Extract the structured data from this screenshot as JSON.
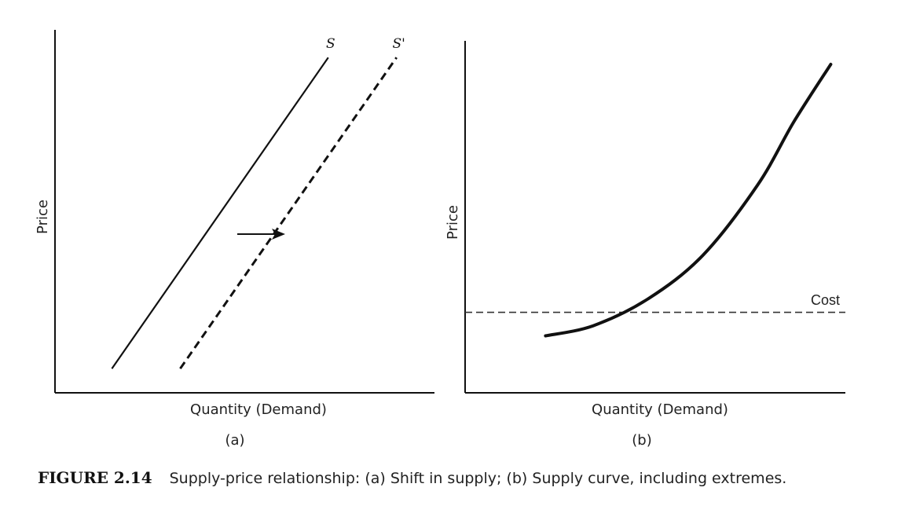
{
  "chart_data": [
    {
      "type": "line",
      "panel_label": "(a)",
      "title": "",
      "xlabel": "Quantity (Demand)",
      "ylabel": "Price",
      "grid": false,
      "series": [
        {
          "name": "S",
          "style": "solid",
          "x": [
            0.15,
            0.72
          ],
          "y": [
            0.07,
            0.97
          ]
        },
        {
          "name": "S'",
          "style": "dashed",
          "x": [
            0.33,
            0.9
          ],
          "y": [
            0.07,
            0.97
          ]
        }
      ],
      "annotations": [
        {
          "type": "arrow",
          "direction": "right",
          "meaning": "shift in supply"
        }
      ],
      "xlim": [
        0,
        1
      ],
      "ylim": [
        0,
        1.05
      ]
    },
    {
      "type": "line",
      "panel_label": "(b)",
      "title": "",
      "xlabel": "Quantity (Demand)",
      "ylabel": "Price",
      "grid": false,
      "series": [
        {
          "name": "",
          "style": "solid",
          "x": [
            0.22,
            0.35,
            0.5,
            0.65,
            0.8,
            0.9,
            1.0
          ],
          "y": [
            0.17,
            0.2,
            0.28,
            0.41,
            0.62,
            0.81,
            0.98
          ]
        }
      ],
      "reference_lines": [
        {
          "label": "Cost",
          "style": "dashed",
          "y": 0.24
        }
      ],
      "xlim": [
        0,
        1.04
      ],
      "ylim": [
        0,
        1.05
      ]
    }
  ],
  "caption": {
    "figure_number": "FIGURE 2.14",
    "text": "Supply-price relationship: (a) Shift in supply; (b) Supply curve, including extremes."
  }
}
